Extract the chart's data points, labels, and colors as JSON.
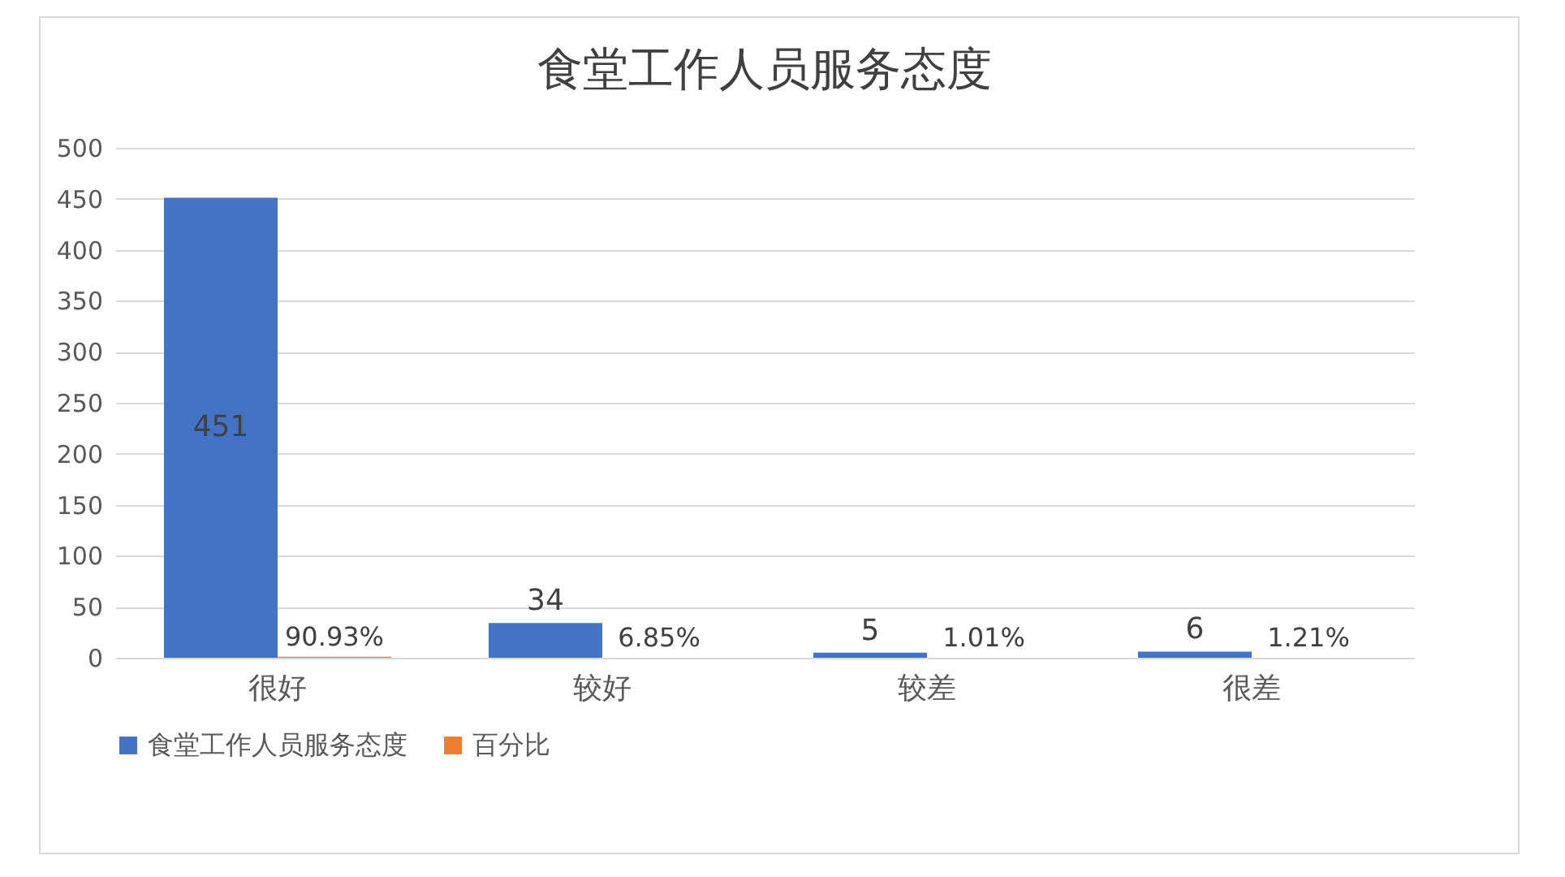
{
  "chart_data": {
    "type": "bar",
    "title": "食堂工作人员服务态度",
    "categories": [
      "很好",
      "较好",
      "较差",
      "很差"
    ],
    "series": [
      {
        "name": "食堂工作人员服务态度",
        "color": "#4472c4",
        "values": [
          451,
          34,
          5,
          6
        ],
        "value_labels": [
          "451",
          "34",
          "5",
          "6"
        ]
      },
      {
        "name": "百分比",
        "color": "#ed7d31",
        "values": [
          0.9093,
          0.0685,
          0.0101,
          0.0121
        ],
        "value_labels": [
          "90.93%",
          "6.85%",
          "1.01%",
          "1.21%"
        ]
      }
    ],
    "ylim": [
      0,
      500
    ],
    "yticks": [
      0,
      50,
      100,
      150,
      200,
      250,
      300,
      350,
      400,
      450,
      500
    ],
    "grid": "y",
    "legend": "bottom"
  }
}
